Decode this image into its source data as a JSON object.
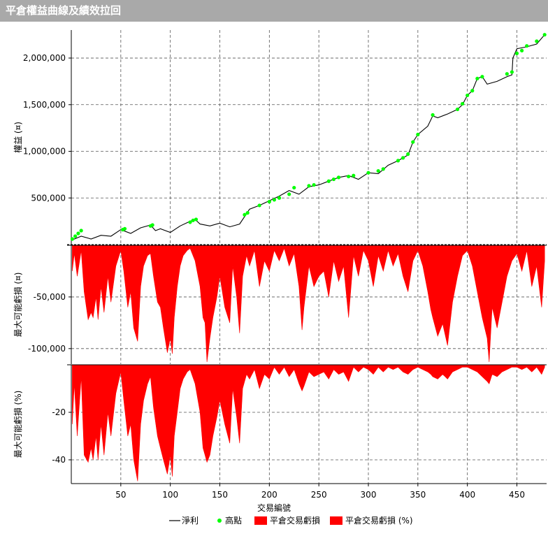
{
  "window": {
    "title": "平倉權益曲線及績效拉回"
  },
  "chart_data": [
    {
      "type": "line",
      "ylabel": "權益 (¤)",
      "ylim": [
        0,
        2300000
      ],
      "yticks": [
        500000,
        1000000,
        1500000,
        2000000
      ],
      "ytick_labels": [
        "500,000",
        "1,000,000",
        "1,500,000",
        "2,000,000"
      ],
      "grid": true,
      "series": [
        {
          "name": "淨利",
          "color": "#000000",
          "x": [
            1,
            10,
            20,
            30,
            40,
            50,
            55,
            60,
            70,
            80,
            85,
            90,
            100,
            110,
            120,
            125,
            130,
            140,
            150,
            160,
            170,
            180,
            190,
            200,
            210,
            220,
            230,
            240,
            250,
            260,
            270,
            280,
            290,
            300,
            310,
            320,
            330,
            340,
            345,
            350,
            360,
            365,
            370,
            380,
            390,
            395,
            400,
            405,
            410,
            415,
            420,
            430,
            440,
            445,
            446,
            450,
            460,
            470,
            478
          ],
          "values": [
            50000,
            90000,
            60000,
            100000,
            90000,
            160000,
            140000,
            120000,
            180000,
            210000,
            150000,
            170000,
            130000,
            200000,
            250000,
            270000,
            220000,
            200000,
            230000,
            190000,
            220000,
            380000,
            420000,
            470000,
            520000,
            580000,
            540000,
            620000,
            640000,
            680000,
            720000,
            740000,
            700000,
            770000,
            760000,
            850000,
            900000,
            960000,
            1100000,
            1180000,
            1270000,
            1380000,
            1360000,
            1400000,
            1450000,
            1500000,
            1600000,
            1650000,
            1780000,
            1800000,
            1720000,
            1750000,
            1800000,
            1820000,
            2000000,
            2100000,
            2120000,
            2150000,
            2250000
          ]
        },
        {
          "name": "高點",
          "color": "#00ff00",
          "x": [
            1,
            4,
            7,
            10,
            52,
            54,
            80,
            82,
            120,
            123,
            126,
            175,
            178,
            190,
            200,
            205,
            210,
            220,
            225,
            240,
            245,
            260,
            265,
            270,
            280,
            285,
            300,
            310,
            315,
            330,
            335,
            340,
            345,
            350,
            365,
            390,
            395,
            400,
            405,
            410,
            415,
            440,
            445,
            450,
            455,
            460,
            470,
            478
          ],
          "values": [
            60000,
            90000,
            120000,
            150000,
            160000,
            170000,
            200000,
            210000,
            240000,
            260000,
            270000,
            320000,
            340000,
            420000,
            460000,
            480000,
            500000,
            540000,
            610000,
            630000,
            640000,
            680000,
            700000,
            720000,
            730000,
            740000,
            770000,
            790000,
            810000,
            900000,
            930000,
            970000,
            1100000,
            1180000,
            1390000,
            1450000,
            1510000,
            1600000,
            1650000,
            1780000,
            1800000,
            1830000,
            1850000,
            2050000,
            2080000,
            2130000,
            2180000,
            2250000
          ]
        }
      ]
    },
    {
      "type": "area",
      "ylabel": "最大可能虧損 (¤)",
      "ylim": [
        -115000,
        0
      ],
      "yticks": [
        -50000,
        -100000
      ],
      "ytick_labels": [
        "-50,000",
        "-100,000"
      ],
      "grid": true,
      "series": [
        {
          "name": "平倉交易虧損",
          "color": "#ff0000",
          "x": [
            1,
            3,
            6,
            10,
            13,
            17,
            20,
            22,
            25,
            27,
            30,
            33,
            37,
            40,
            45,
            50,
            53,
            57,
            60,
            63,
            67,
            70,
            73,
            77,
            80,
            83,
            87,
            90,
            93,
            97,
            100,
            102,
            104,
            107,
            110,
            113,
            117,
            120,
            125,
            130,
            133,
            135,
            137,
            140,
            143,
            147,
            150,
            155,
            160,
            163,
            167,
            170,
            173,
            177,
            180,
            185,
            190,
            195,
            200,
            205,
            210,
            215,
            220,
            225,
            230,
            233,
            235,
            240,
            245,
            250,
            255,
            260,
            265,
            270,
            275,
            280,
            285,
            290,
            295,
            300,
            305,
            310,
            315,
            320,
            325,
            330,
            335,
            340,
            345,
            350,
            355,
            360,
            363,
            365,
            370,
            375,
            380,
            385,
            390,
            395,
            400,
            405,
            410,
            415,
            420,
            422,
            425,
            430,
            435,
            440,
            445,
            450,
            455,
            460,
            465,
            470,
            475,
            478
          ],
          "values": [
            -25000,
            -8000,
            -30000,
            -5000,
            -45000,
            -72000,
            -65000,
            -70000,
            -50000,
            -72000,
            -40000,
            -65000,
            -30000,
            -55000,
            -20000,
            -5000,
            -25000,
            -60000,
            -45000,
            -80000,
            -93000,
            -40000,
            -20000,
            -10000,
            -8000,
            -30000,
            -55000,
            -60000,
            -80000,
            -104000,
            -90000,
            -105000,
            -70000,
            -40000,
            -20000,
            -10000,
            -5000,
            -3000,
            -15000,
            -40000,
            -70000,
            -75000,
            -113000,
            -90000,
            -70000,
            -50000,
            -30000,
            -60000,
            -75000,
            -20000,
            -50000,
            -85000,
            -30000,
            -10000,
            -20000,
            -5000,
            -40000,
            -15000,
            -25000,
            -5000,
            -15000,
            -3000,
            -20000,
            -8000,
            -40000,
            -82000,
            -60000,
            -20000,
            -40000,
            -30000,
            -25000,
            -50000,
            -15000,
            -35000,
            -20000,
            -70000,
            -10000,
            -30000,
            -5000,
            -15000,
            -40000,
            -10000,
            -25000,
            -5000,
            -20000,
            -8000,
            -30000,
            -45000,
            -15000,
            -5000,
            -20000,
            -45000,
            -62000,
            -70000,
            -88000,
            -76000,
            -97000,
            -55000,
            -30000,
            -10000,
            -5000,
            -20000,
            -45000,
            -70000,
            -90000,
            -113000,
            -60000,
            -80000,
            -55000,
            -30000,
            -15000,
            -8000,
            -25000,
            -5000,
            -40000,
            -20000,
            -60000,
            -15000
          ]
        }
      ]
    },
    {
      "type": "area",
      "ylabel": "最大可能虧損 (%)",
      "ylim": [
        -50,
        0
      ],
      "yticks": [
        -20,
        -40
      ],
      "ytick_labels": [
        "-20",
        "-40"
      ],
      "xlabel": "交易編號",
      "xlim": [
        0,
        480
      ],
      "xticks": [
        50,
        100,
        150,
        200,
        250,
        300,
        350,
        400,
        450
      ],
      "xtick_labels": [
        "50",
        "100",
        "150",
        "200",
        "250",
        "300",
        "350",
        "400",
        "450"
      ],
      "grid": true,
      "series": [
        {
          "name": "平倉交易虧損 (%)",
          "color": "#ff0000",
          "x": [
            1,
            3,
            6,
            10,
            13,
            17,
            20,
            22,
            25,
            27,
            30,
            33,
            37,
            40,
            45,
            50,
            53,
            57,
            60,
            63,
            67,
            70,
            73,
            77,
            80,
            83,
            87,
            90,
            93,
            97,
            100,
            102,
            104,
            107,
            110,
            113,
            117,
            120,
            125,
            130,
            133,
            135,
            137,
            140,
            143,
            147,
            150,
            155,
            160,
            163,
            167,
            170,
            173,
            177,
            180,
            185,
            190,
            195,
            200,
            205,
            210,
            215,
            220,
            225,
            230,
            233,
            235,
            240,
            245,
            250,
            255,
            260,
            265,
            270,
            275,
            280,
            285,
            290,
            295,
            300,
            305,
            310,
            315,
            320,
            325,
            330,
            335,
            340,
            345,
            350,
            355,
            360,
            363,
            365,
            370,
            375,
            380,
            385,
            390,
            395,
            400,
            405,
            410,
            415,
            420,
            422,
            425,
            430,
            435,
            440,
            445,
            450,
            455,
            460,
            465,
            470,
            475,
            478
          ],
          "values": [
            -25,
            -8,
            -30,
            -5,
            -38,
            -41,
            -35,
            -40,
            -30,
            -40,
            -25,
            -38,
            -20,
            -30,
            -12,
            -3,
            -15,
            -30,
            -25,
            -40,
            -49,
            -25,
            -15,
            -8,
            -5,
            -18,
            -30,
            -35,
            -40,
            -46,
            -38,
            -47,
            -30,
            -20,
            -10,
            -6,
            -3,
            -2,
            -8,
            -20,
            -35,
            -38,
            -41,
            -38,
            -30,
            -22,
            -15,
            -25,
            -33,
            -10,
            -22,
            -33,
            -10,
            -4,
            -6,
            -2,
            -10,
            -4,
            -6,
            -1,
            -4,
            -1,
            -5,
            -2,
            -8,
            -11,
            -9,
            -3,
            -5,
            -4,
            -3,
            -6,
            -2,
            -4,
            -3,
            -7,
            -1,
            -3,
            -1,
            -2,
            -4,
            -1,
            -3,
            -1,
            -2,
            -1,
            -3,
            -4,
            -2,
            -1,
            -2,
            -3,
            -4,
            -5,
            -6,
            -4,
            -6,
            -3,
            -2,
            -1,
            -1,
            -2,
            -3,
            -5,
            -7,
            -8,
            -4,
            -5,
            -3,
            -2,
            -1,
            -1,
            -2,
            -1,
            -3,
            -1,
            -4,
            -1
          ]
        }
      ]
    }
  ],
  "legend": {
    "items": [
      {
        "label": "淨利",
        "marker": "line",
        "color": "#000000"
      },
      {
        "label": "高點",
        "marker": "dot",
        "color": "#00ff00"
      },
      {
        "label": "平倉交易虧損",
        "marker": "box",
        "color": "#ff0000"
      },
      {
        "label": "平倉交易虧損 (%)",
        "marker": "box",
        "color": "#ff0000"
      }
    ]
  }
}
